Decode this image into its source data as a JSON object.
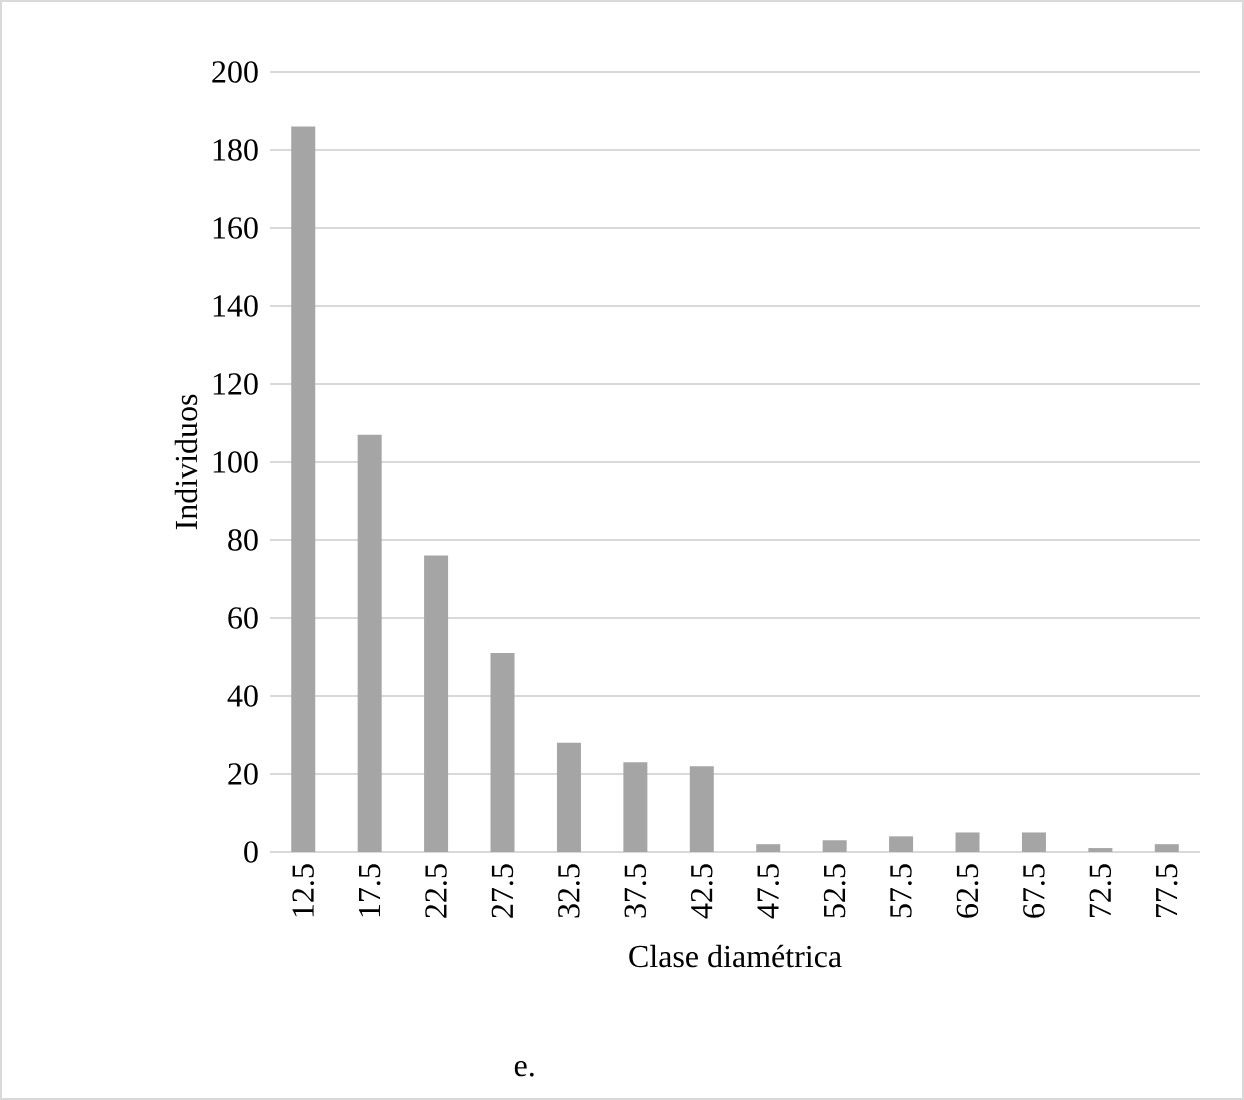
{
  "chart_data": {
    "type": "bar",
    "xlabel": "Clase diamétrica",
    "ylabel": "Individuos",
    "categories": [
      "12.5",
      "17.5",
      "22.5",
      "27.5",
      "32.5",
      "37.5",
      "42.5",
      "47.5",
      "52.5",
      "57.5",
      "62.5",
      "67.5",
      "72.5",
      "77.5"
    ],
    "values": [
      186,
      107,
      76,
      51,
      28,
      23,
      22,
      2,
      3,
      4,
      5,
      5,
      1,
      2
    ],
    "color": "#a5a5a5",
    "ylim": [
      0,
      200
    ],
    "yticks": [
      0,
      20,
      40,
      60,
      80,
      100,
      120,
      140,
      160,
      180,
      200
    ],
    "grid": "y",
    "annotations": [
      "e."
    ]
  }
}
